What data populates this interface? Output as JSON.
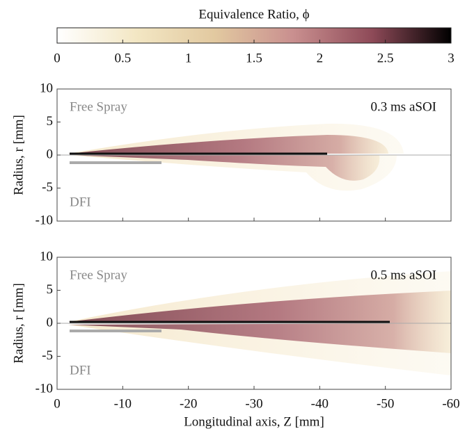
{
  "colorbar": {
    "label": "Equivalence Ratio, ϕ",
    "lim": [
      0,
      3
    ],
    "ticks": [
      0,
      0.5,
      1,
      1.5,
      2,
      2.5,
      3
    ],
    "colors": [
      "#ffffff",
      "#f3e7c4",
      "#e2c9a0",
      "#c98f8f",
      "#8e4a58",
      "#000000"
    ]
  },
  "chart_data": [
    {
      "type": "image",
      "title": "0.3 ms aSOI",
      "ylabel": "Radius, r [mm]",
      "upper_label": "Free Spray",
      "lower_label": "DFI",
      "xlim": [
        0,
        -60
      ],
      "xticks": [
        0,
        -10,
        -20,
        -30,
        -40,
        -50,
        -60
      ],
      "ylim": [
        -10,
        10
      ],
      "yticks": [
        -10,
        -5,
        0,
        5,
        10
      ]
    },
    {
      "type": "image",
      "title": "0.5 ms aSOI",
      "ylabel": "Radius, r [mm]",
      "upper_label": "Free Spray",
      "lower_label": "DFI",
      "xlabel": "Longitudinal axis, Z [mm]",
      "xlim": [
        0,
        -60
      ],
      "xticks": [
        0,
        -10,
        -20,
        -30,
        -40,
        -50,
        -60
      ],
      "ylim": [
        -10,
        10
      ],
      "yticks": [
        -10,
        -5,
        0,
        5,
        10
      ]
    }
  ]
}
